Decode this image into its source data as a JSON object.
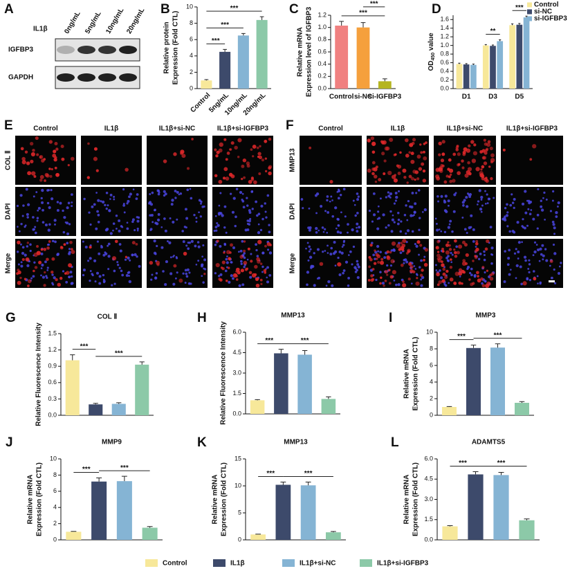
{
  "blot": {
    "panel": "A",
    "treatment": "IL1β",
    "doses": [
      "0ng/mL",
      "5ng/mL",
      "10ng/mL",
      "20ng/mL"
    ],
    "rows": [
      "IGFBP3",
      "GAPDH"
    ]
  },
  "chart_data": [
    {
      "panel": "B",
      "type": "bar",
      "ylabel": [
        "Relative protein",
        "Expression (Fold CTL)"
      ],
      "categories": [
        "Control",
        "5ng/mL",
        "10ng/mL",
        "20ng/mL"
      ],
      "values": [
        1,
        4.5,
        6.5,
        8.4
      ],
      "errors": [
        0.1,
        0.3,
        0.25,
        0.4
      ],
      "colors": [
        "#f7e89a",
        "#3d4a6b",
        "#85b4d4",
        "#8cc9a8"
      ],
      "ylim": [
        0,
        10
      ],
      "yticks": [
        0,
        2,
        4,
        6,
        8,
        10
      ],
      "annotations": [
        "***",
        "***",
        "***"
      ]
    },
    {
      "panel": "C",
      "type": "bar",
      "ylabel": [
        "Relative mRNA",
        "Expression level of IGFBP3"
      ],
      "categories": [
        "Control",
        "si-NC",
        "si-IGFBP3"
      ],
      "values": [
        1.03,
        1.0,
        0.12
      ],
      "errors": [
        0.07,
        0.08,
        0.04
      ],
      "colors": [
        "#f08080",
        "#f5a03c",
        "#b5b520"
      ],
      "ylim": [
        0,
        1.2
      ],
      "yticks": [
        {
          "value": 0,
          "label": "0.0"
        },
        0.2,
        0.4,
        0.6,
        0.8,
        {
          "value": 1,
          "label": "1.0"
        },
        1.2
      ],
      "annotations": [
        "***",
        "***"
      ]
    },
    {
      "panel": "D",
      "type": "bar",
      "ylabel_parts": [
        "OD",
        "450",
        " value"
      ],
      "categories": [
        "D1",
        "D3",
        "D5"
      ],
      "series": [
        {
          "name": "Control",
          "color": "#f7e89a",
          "values": [
            0.57,
            1.0,
            1.47
          ],
          "errors": [
            0.02,
            0.02,
            0.03
          ]
        },
        {
          "name": "si-NC",
          "color": "#3d4a6b",
          "values": [
            0.56,
            0.99,
            1.48
          ],
          "errors": [
            0.02,
            0.02,
            0.03
          ]
        },
        {
          "name": "si-IGFBP3",
          "color": "#85b4d4",
          "values": [
            0.55,
            1.1,
            1.65
          ],
          "errors": [
            0.02,
            0.03,
            0.03
          ]
        }
      ],
      "legend": "top-right",
      "ylim": [
        0,
        1.7
      ],
      "yticks": [
        {
          "value": 0,
          "label": "0.0"
        },
        0.2,
        0.4,
        0.6,
        0.8,
        {
          "value": 1,
          "label": "1.0"
        },
        1.2,
        1.4,
        1.6
      ],
      "annotations": [
        "**",
        "***"
      ]
    },
    {
      "panel": "G",
      "type": "bar",
      "title": "COL Ⅱ",
      "ylabel": "Relative Fluorescence Intensity",
      "categories": [
        null,
        null,
        null,
        null
      ],
      "values": [
        1.01,
        0.2,
        0.21,
        0.93
      ],
      "errors": [
        0.1,
        0.02,
        0.02,
        0.05
      ],
      "colors": [
        "#f7e89a",
        "#3d4a6b",
        "#85b4d4",
        "#8cc9a8"
      ],
      "ylim": [
        0,
        1.5
      ],
      "yticks": [
        {
          "value": 0,
          "label": "0.0"
        },
        0.3,
        0.6,
        0.9,
        1.2,
        1.5
      ],
      "annotations": [
        "***",
        "***"
      ]
    },
    {
      "panel": "H",
      "type": "bar",
      "title": "MMP13",
      "ylabel": "Relative Fluorescence Intensity",
      "categories": [
        null,
        null,
        null,
        null
      ],
      "values": [
        1.0,
        4.45,
        4.35,
        1.1
      ],
      "errors": [
        0.05,
        0.3,
        0.3,
        0.15
      ],
      "colors": [
        "#f7e89a",
        "#3d4a6b",
        "#85b4d4",
        "#8cc9a8"
      ],
      "ylim": [
        0,
        6
      ],
      "yticks": [
        {
          "value": 0,
          "label": "0.0"
        },
        1.5,
        {
          "value": 3,
          "label": "3.0"
        },
        4.5,
        {
          "value": 6,
          "label": "6.0"
        }
      ],
      "annotations": [
        "***",
        "***"
      ]
    },
    {
      "panel": "I",
      "type": "bar",
      "title": "MMP3",
      "ylabel": [
        "Relative mRNA",
        "Expression (Fold CTL)"
      ],
      "categories": [
        null,
        null,
        null,
        null
      ],
      "values": [
        1.0,
        8.1,
        8.15,
        1.5
      ],
      "errors": [
        0.05,
        0.35,
        0.45,
        0.15
      ],
      "colors": [
        "#f7e89a",
        "#3d4a6b",
        "#85b4d4",
        "#8cc9a8"
      ],
      "ylim": [
        0,
        10
      ],
      "yticks": [
        0,
        2,
        4,
        6,
        8,
        10
      ],
      "annotations": [
        "***",
        "***"
      ]
    },
    {
      "panel": "J",
      "type": "bar",
      "title": "MMP9",
      "ylabel": [
        "Relative mRNA",
        "Expression (Fold CTL)"
      ],
      "categories": [
        null,
        null,
        null,
        null
      ],
      "values": [
        1.0,
        7.2,
        7.25,
        1.5
      ],
      "errors": [
        0.05,
        0.45,
        0.6,
        0.15
      ],
      "colors": [
        "#f7e89a",
        "#3d4a6b",
        "#85b4d4",
        "#8cc9a8"
      ],
      "ylim": [
        0,
        10
      ],
      "yticks": [
        0,
        2,
        4,
        6,
        8,
        10
      ],
      "annotations": [
        "***",
        "***"
      ]
    },
    {
      "panel": "K",
      "type": "bar",
      "title": "MMP13",
      "ylabel": [
        "Relative mRNA",
        "Expression (Fold CTL)"
      ],
      "categories": [
        null,
        null,
        null,
        null
      ],
      "values": [
        1.0,
        10.2,
        10.1,
        1.4
      ],
      "errors": [
        0.05,
        0.5,
        0.6,
        0.15
      ],
      "colors": [
        "#f7e89a",
        "#3d4a6b",
        "#85b4d4",
        "#8cc9a8"
      ],
      "ylim": [
        0,
        15
      ],
      "yticks": [
        0,
        5,
        10,
        15
      ],
      "annotations": [
        "***",
        "***"
      ]
    },
    {
      "panel": "L",
      "type": "bar",
      "title": "ADAMTS5",
      "ylabel": [
        "Relative mRNA",
        "Expression (Fold CTL)"
      ],
      "categories": [
        null,
        null,
        null,
        null
      ],
      "values": [
        1.0,
        4.85,
        4.8,
        1.45
      ],
      "errors": [
        0.05,
        0.2,
        0.2,
        0.1
      ],
      "colors": [
        "#f7e89a",
        "#3d4a6b",
        "#85b4d4",
        "#8cc9a8"
      ],
      "ylim": [
        0,
        6
      ],
      "yticks": [
        {
          "value": 0,
          "label": "0.0"
        },
        1.5,
        {
          "value": 3,
          "label": "3.0"
        },
        4.5,
        {
          "value": 6,
          "label": "6.0"
        }
      ],
      "annotations": [
        "***",
        "***"
      ]
    }
  ],
  "if_panels": [
    {
      "panel": "E",
      "columns": [
        "Control",
        "IL1β",
        "IL1β+si-NC",
        "IL1β+si-IGFBP3"
      ],
      "rows": [
        "COL Ⅱ",
        "DAPI",
        "Merge"
      ]
    },
    {
      "panel": "F",
      "columns": [
        "Control",
        "IL1β",
        "IL1β+si-NC",
        "IL1β+si-IGFBP3"
      ],
      "rows": [
        "MMP13",
        "DAPI",
        "Merge"
      ]
    }
  ],
  "legend": {
    "labels": [
      "Control",
      "IL1β",
      "IL1β+si-NC",
      "IL1β+si-IGFBP3"
    ],
    "colors": [
      "#f7e89a",
      "#3d4a6b",
      "#85b4d4",
      "#8cc9a8"
    ]
  }
}
